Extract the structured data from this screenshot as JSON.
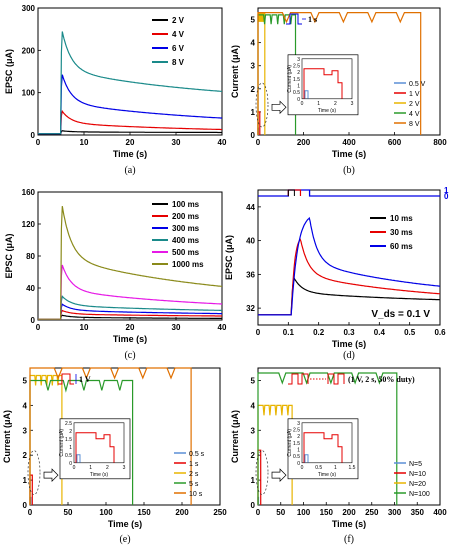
{
  "chart_data": [
    {
      "id": "a",
      "type": "line",
      "caption": "(a)",
      "xlabel": "Time (s)",
      "ylabel": "EPSC (μA)",
      "xlim": [
        0,
        40
      ],
      "ylim": [
        0,
        300
      ],
      "xticks": [
        0,
        10,
        20,
        30,
        40
      ],
      "yticks": [
        0,
        100,
        200,
        300
      ],
      "legend_position": "top-right",
      "series": [
        {
          "name": "2 V",
          "color": "#000000",
          "base": 2,
          "peak": 10,
          "end": 6,
          "t0": 5
        },
        {
          "name": "4 V",
          "color": "#e60000",
          "base": 3,
          "peak": 57,
          "end": 13,
          "t0": 5
        },
        {
          "name": "6 V",
          "color": "#0000e6",
          "base": 3,
          "peak": 145,
          "end": 40,
          "t0": 5
        },
        {
          "name": "8 V",
          "color": "#1a8a8a",
          "base": 3,
          "peak": 248,
          "end": 103,
          "t0": 5
        }
      ]
    },
    {
      "id": "b",
      "type": "line",
      "caption": "(b)",
      "xlabel": "Time (s)",
      "ylabel": "Current (μA)",
      "xlim": [
        0,
        800
      ],
      "ylim": [
        0,
        5.5
      ],
      "xticks": [
        0,
        200,
        400,
        600,
        800
      ],
      "yticks": [
        0,
        1,
        2,
        3,
        4,
        5
      ],
      "legend_position": "bottom-right",
      "pulse_label": "1 s",
      "series": [
        {
          "name": "0.5 V",
          "color": "#5b8fd6",
          "plateau": 0.3,
          "drop_time": 2
        },
        {
          "name": "1 V",
          "color": "#e60000",
          "plateau": 1.0,
          "drop_time": 8
        },
        {
          "name": "2 V",
          "color": "#e8b400",
          "plateau": 5.3,
          "drop_time": 30
        },
        {
          "name": "4 V",
          "color": "#2a9a2a",
          "plateau": 5.2,
          "drop_time": 165
        },
        {
          "name": "8 V",
          "color": "#e07000",
          "plateau": 5.3,
          "drop_time": 715
        }
      ],
      "inset": {
        "xlabel": "Time (s)",
        "ylabel": "Current (μA)",
        "xticks": [
          0,
          1,
          2,
          3
        ],
        "yticks": [
          0,
          0.5,
          1,
          1.5,
          2,
          2.5,
          3
        ]
      }
    },
    {
      "id": "c",
      "type": "line",
      "caption": "(c)",
      "xlabel": "Time (s)",
      "ylabel": "EPSC (μA)",
      "xlim": [
        0,
        40
      ],
      "ylim": [
        0,
        160
      ],
      "xticks": [
        0,
        10,
        20,
        30,
        40
      ],
      "yticks": [
        0,
        40,
        80,
        120,
        160
      ],
      "legend_position": "top-right",
      "series": [
        {
          "name": "100 ms",
          "color": "#000000",
          "base": 1,
          "peak": 6,
          "end": 2,
          "t0": 5
        },
        {
          "name": "200 ms",
          "color": "#e60000",
          "base": 1,
          "peak": 12,
          "end": 5,
          "t0": 5
        },
        {
          "name": "300 ms",
          "color": "#0000e6",
          "base": 1,
          "peak": 20,
          "end": 8,
          "t0": 5
        },
        {
          "name": "400 ms",
          "color": "#1a8a8a",
          "base": 1,
          "peak": 30,
          "end": 12,
          "t0": 5
        },
        {
          "name": "500 ms",
          "color": "#e619e6",
          "base": 1,
          "peak": 70,
          "end": 20,
          "t0": 5
        },
        {
          "name": "1000 ms",
          "color": "#8a8a1a",
          "base": 1,
          "peak": 145,
          "end": 42,
          "t0": 5
        }
      ]
    },
    {
      "id": "d",
      "type": "line",
      "caption": "(d)",
      "xlabel": "Time (s)",
      "ylabel": "EPSC (μA)",
      "xlim": [
        0.0,
        0.6
      ],
      "ylim": [
        30,
        46
      ],
      "xticks": [
        0.0,
        0.1,
        0.2,
        0.3,
        0.4,
        0.5,
        0.6
      ],
      "yticks": [
        32,
        36,
        40,
        44
      ],
      "right_yticks": [
        0,
        1
      ],
      "annotation": "V_ds = 0.1 V",
      "legend_position": "top-right",
      "series": [
        {
          "name": "10 ms",
          "color": "#000000",
          "base": 31.2,
          "peak": 35.5,
          "end": 33.0,
          "t0": 0.11,
          "width": 0.01
        },
        {
          "name": "30 ms",
          "color": "#e60000",
          "base": 31.2,
          "peak": 40.2,
          "end": 33.7,
          "t0": 0.11,
          "width": 0.03
        },
        {
          "name": "60 ms",
          "color": "#0000e6",
          "base": 31.2,
          "peak": 42.7,
          "end": 34.6,
          "t0": 0.11,
          "width": 0.06
        }
      ]
    },
    {
      "id": "e",
      "type": "line",
      "caption": "(e)",
      "xlabel": "Time (s)",
      "ylabel": "Current (μA)",
      "xlim": [
        0,
        250
      ],
      "ylim": [
        0,
        5.5
      ],
      "xticks": [
        0,
        50,
        100,
        150,
        200,
        250
      ],
      "yticks": [
        0,
        1,
        2,
        3,
        4,
        5
      ],
      "legend_position": "bottom-right",
      "pulse_label": "1 V",
      "series": [
        {
          "name": "0.5 s",
          "color": "#5b8fd6",
          "plateau": 0.3,
          "drop_time": 1
        },
        {
          "name": "1 s",
          "color": "#e60000",
          "plateau": 1.2,
          "drop_time": 3
        },
        {
          "name": "2 s",
          "color": "#e8b400",
          "plateau": 5.2,
          "drop_time": 42
        },
        {
          "name": "5 s",
          "color": "#2a9a2a",
          "plateau": 5.0,
          "drop_time": 135
        },
        {
          "name": "10 s",
          "color": "#e07000",
          "plateau": 5.5,
          "drop_time": 212
        }
      ],
      "inset": {
        "xlabel": "Time (s)",
        "ylabel": "Current (μA)",
        "xticks": [
          0,
          1,
          2,
          3
        ],
        "yticks": [
          0,
          0.5,
          1,
          1.5,
          2,
          2.5
        ]
      }
    },
    {
      "id": "f",
      "type": "line",
      "caption": "(f)",
      "xlabel": "Time (s)",
      "ylabel": "Current (μA)",
      "xlim": [
        0,
        400
      ],
      "ylim": [
        0,
        5.5
      ],
      "xticks": [
        0,
        50,
        100,
        150,
        200,
        250,
        300,
        350,
        400
      ],
      "yticks": [
        0,
        1,
        2,
        3,
        4,
        5
      ],
      "legend_position": "bottom-right",
      "pulse_label": "(1 V, 2 s, 50% duty)",
      "series": [
        {
          "name": "N=5",
          "color": "#5b8fd6",
          "plateau": 0.3,
          "drop_time": 1
        },
        {
          "name": "N=10",
          "color": "#e60000",
          "plateau": 2.2,
          "drop_time": 6
        },
        {
          "name": "N=20",
          "color": "#e8b400",
          "plateau": 4.0,
          "drop_time": 75
        },
        {
          "name": "N=100",
          "color": "#2a9a2a",
          "plateau": 5.3,
          "drop_time": 305
        }
      ],
      "inset": {
        "xlabel": "Time (s)",
        "ylabel": "Current (μA)",
        "xticks": [
          0,
          0.5,
          1,
          1.5
        ],
        "yticks": [
          0,
          0.5,
          1,
          1.5,
          2,
          2.5,
          3
        ]
      }
    }
  ]
}
